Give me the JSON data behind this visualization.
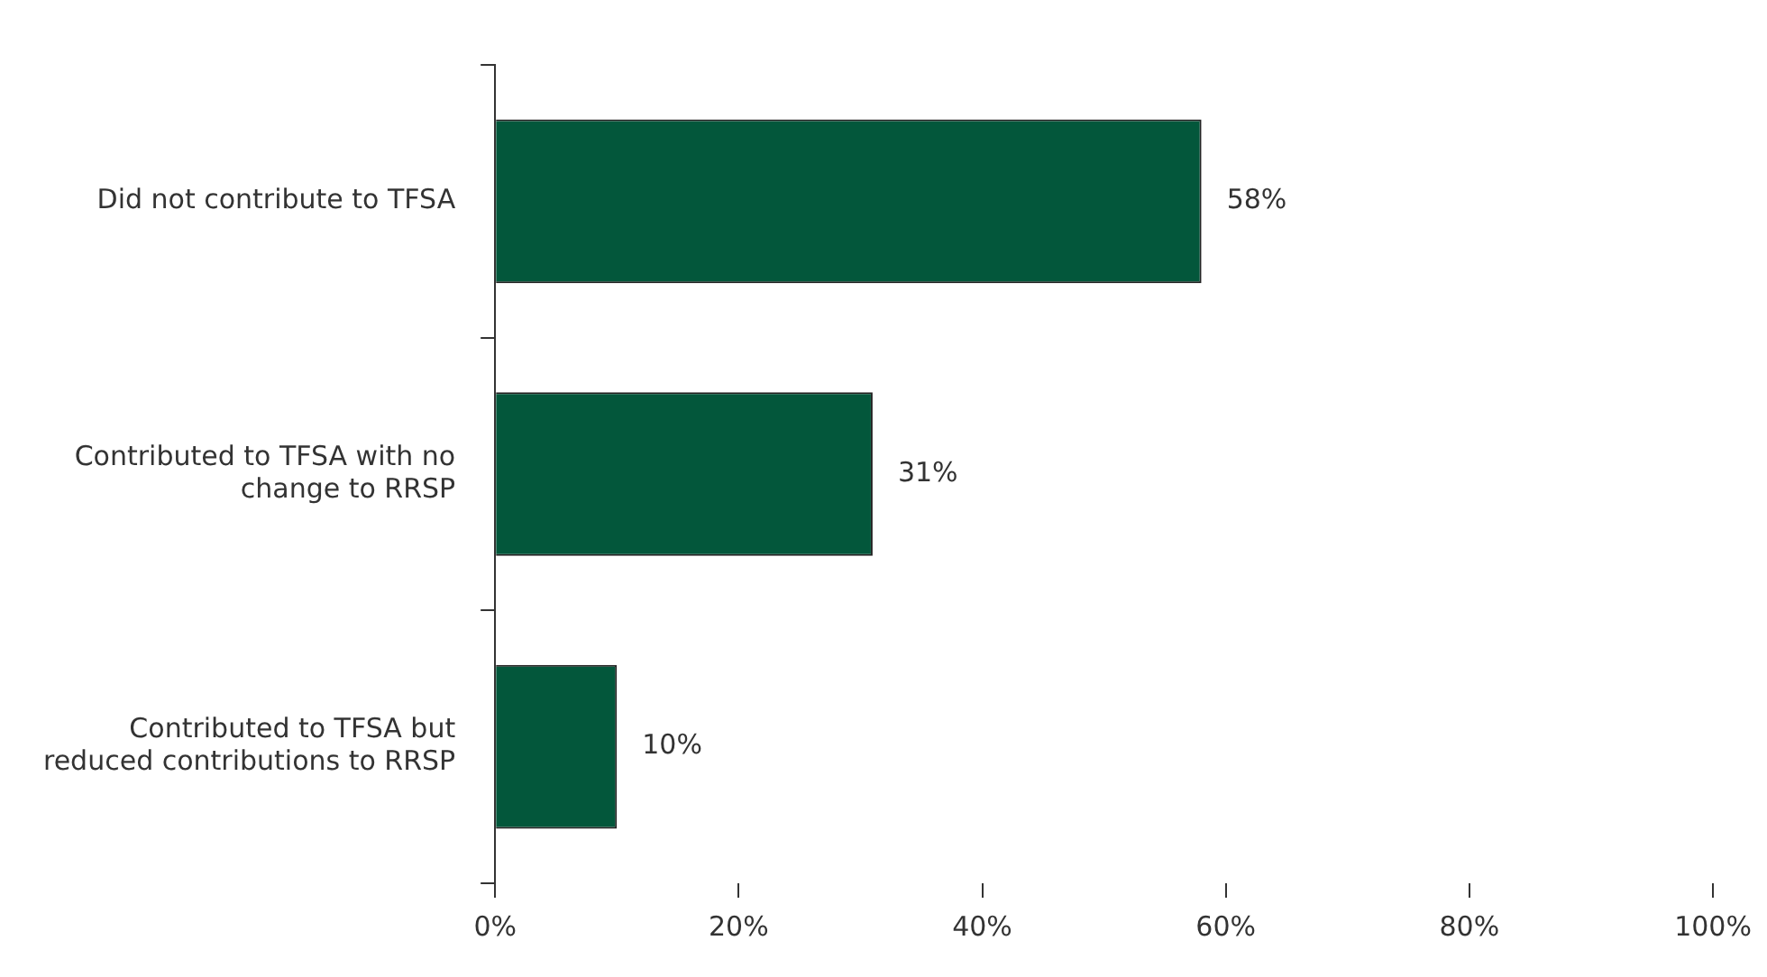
{
  "chart_data": {
    "type": "bar",
    "orientation": "horizontal",
    "categories": [
      "Did not contribute to TFSA",
      "Contributed to TFSA with no change to RRSP",
      "Contributed to TFSA but reduced contributions to RRSP"
    ],
    "values": [
      58,
      31,
      10
    ],
    "value_labels": [
      "58%",
      "31%",
      "10%"
    ],
    "color": "#03573b",
    "xlim": [
      0,
      100
    ],
    "xticks": [
      {
        "value": 0,
        "label": "0%"
      },
      {
        "value": 20,
        "label": "20%"
      },
      {
        "value": 40,
        "label": "40%"
      },
      {
        "value": 60,
        "label": "60%"
      },
      {
        "value": 80,
        "label": "80%"
      },
      {
        "value": 100,
        "label": "100%"
      }
    ],
    "grid": false,
    "legend": false
  }
}
